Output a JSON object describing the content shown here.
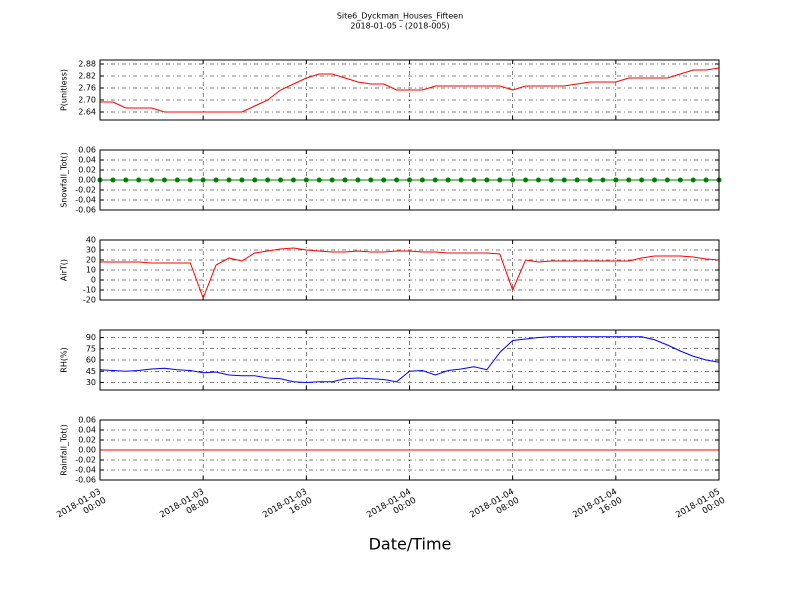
{
  "chart_data": [
    {
      "type": "line",
      "title": "Site6_Dyckman_Houses_Fifteen",
      "subtitle": "2018-01-05 - (2018-005)",
      "ylabel": "P(unitless)",
      "color": "#ff0000",
      "x": [
        "2018-01-03 00:00",
        "2018-01-03 01:00",
        "2018-01-03 02:00",
        "2018-01-03 03:00",
        "2018-01-03 04:00",
        "2018-01-03 05:00",
        "2018-01-03 06:00",
        "2018-01-03 07:00",
        "2018-01-03 08:00",
        "2018-01-03 09:00",
        "2018-01-03 10:00",
        "2018-01-03 11:00",
        "2018-01-03 12:00",
        "2018-01-03 13:00",
        "2018-01-03 14:00",
        "2018-01-03 15:00",
        "2018-01-03 16:00",
        "2018-01-03 17:00",
        "2018-01-03 18:00",
        "2018-01-03 19:00",
        "2018-01-03 20:00",
        "2018-01-03 21:00",
        "2018-01-03 22:00",
        "2018-01-03 23:00",
        "2018-01-04 00:00",
        "2018-01-04 01:00",
        "2018-01-04 02:00",
        "2018-01-04 03:00",
        "2018-01-04 04:00",
        "2018-01-04 05:00",
        "2018-01-04 06:00",
        "2018-01-04 07:00",
        "2018-01-04 08:00",
        "2018-01-04 09:00",
        "2018-01-04 10:00",
        "2018-01-04 11:00",
        "2018-01-04 12:00",
        "2018-01-04 13:00",
        "2018-01-04 14:00",
        "2018-01-04 15:00",
        "2018-01-04 16:00",
        "2018-01-04 17:00",
        "2018-01-04 18:00",
        "2018-01-04 19:00",
        "2018-01-04 20:00",
        "2018-01-04 21:00",
        "2018-01-04 22:00",
        "2018-01-04 23:00",
        "2018-01-05 00:00"
      ],
      "values": [
        2.69,
        2.69,
        2.66,
        2.66,
        2.66,
        2.64,
        2.64,
        2.64,
        2.64,
        2.64,
        2.64,
        2.64,
        2.67,
        2.7,
        2.75,
        2.78,
        2.81,
        2.83,
        2.83,
        2.81,
        2.79,
        2.78,
        2.78,
        2.75,
        2.75,
        2.75,
        2.77,
        2.77,
        2.77,
        2.77,
        2.77,
        2.77,
        2.75,
        2.77,
        2.77,
        2.77,
        2.77,
        2.78,
        2.79,
        2.79,
        2.79,
        2.81,
        2.81,
        2.81,
        2.81,
        2.83,
        2.85,
        2.85,
        2.86
      ],
      "ylim": [
        2.6,
        2.9
      ],
      "yticks": [
        2.64,
        {
          "value": 2.7,
          "label": "2.70"
        },
        2.76,
        2.82,
        2.88
      ],
      "grid": true
    },
    {
      "type": "line",
      "ylabel": "Snowfall_Tot()",
      "color": "#008000",
      "marker": "o",
      "x": [
        "2018-01-03 00:00",
        "2018-01-03 01:00",
        "2018-01-03 02:00",
        "2018-01-03 03:00",
        "2018-01-03 04:00",
        "2018-01-03 05:00",
        "2018-01-03 06:00",
        "2018-01-03 07:00",
        "2018-01-03 08:00",
        "2018-01-03 09:00",
        "2018-01-03 10:00",
        "2018-01-03 11:00",
        "2018-01-03 12:00",
        "2018-01-03 13:00",
        "2018-01-03 14:00",
        "2018-01-03 15:00",
        "2018-01-03 16:00",
        "2018-01-03 17:00",
        "2018-01-03 18:00",
        "2018-01-03 19:00",
        "2018-01-03 20:00",
        "2018-01-03 21:00",
        "2018-01-03 22:00",
        "2018-01-03 23:00",
        "2018-01-04 00:00",
        "2018-01-04 01:00",
        "2018-01-04 02:00",
        "2018-01-04 03:00",
        "2018-01-04 04:00",
        "2018-01-04 05:00",
        "2018-01-04 06:00",
        "2018-01-04 07:00",
        "2018-01-04 08:00",
        "2018-01-04 09:00",
        "2018-01-04 10:00",
        "2018-01-04 11:00",
        "2018-01-04 12:00",
        "2018-01-04 13:00",
        "2018-01-04 14:00",
        "2018-01-04 15:00",
        "2018-01-04 16:00",
        "2018-01-04 17:00",
        "2018-01-04 18:00",
        "2018-01-04 19:00",
        "2018-01-04 20:00",
        "2018-01-04 21:00",
        "2018-01-04 22:00",
        "2018-01-04 23:00",
        "2018-01-05 00:00"
      ],
      "values": [
        0,
        0,
        0,
        0,
        0,
        0,
        0,
        0,
        0,
        0,
        0,
        0,
        0,
        0,
        0,
        0,
        0,
        0,
        0,
        0,
        0,
        0,
        0,
        0,
        0,
        0,
        0,
        0,
        0,
        0,
        0,
        0,
        0,
        0,
        0,
        0,
        0,
        0,
        0,
        0,
        0,
        0,
        0,
        0,
        0,
        0,
        0,
        0,
        0
      ],
      "ylim": [
        -0.06,
        0.06
      ],
      "yticks": [
        -0.06,
        -0.04,
        -0.02,
        {
          "value": 0,
          "label": "0.00"
        },
        0.02,
        0.04,
        0.06
      ],
      "grid": true
    },
    {
      "type": "line",
      "ylabel": "AirT()",
      "color": "#ff0000",
      "x": [
        "2018-01-03 00:00",
        "2018-01-03 01:00",
        "2018-01-03 02:00",
        "2018-01-03 03:00",
        "2018-01-03 04:00",
        "2018-01-03 05:00",
        "2018-01-03 06:00",
        "2018-01-03 07:00",
        "2018-01-03 08:00",
        "2018-01-03 09:00",
        "2018-01-03 10:00",
        "2018-01-03 11:00",
        "2018-01-03 12:00",
        "2018-01-03 13:00",
        "2018-01-03 14:00",
        "2018-01-03 15:00",
        "2018-01-03 16:00",
        "2018-01-03 17:00",
        "2018-01-03 18:00",
        "2018-01-03 19:00",
        "2018-01-03 20:00",
        "2018-01-03 21:00",
        "2018-01-03 22:00",
        "2018-01-03 23:00",
        "2018-01-04 00:00",
        "2018-01-04 01:00",
        "2018-01-04 02:00",
        "2018-01-04 03:00",
        "2018-01-04 04:00",
        "2018-01-04 05:00",
        "2018-01-04 06:00",
        "2018-01-04 07:00",
        "2018-01-04 08:00",
        "2018-01-04 09:00",
        "2018-01-04 10:00",
        "2018-01-04 11:00",
        "2018-01-04 12:00",
        "2018-01-04 13:00",
        "2018-01-04 14:00",
        "2018-01-04 15:00",
        "2018-01-04 16:00",
        "2018-01-04 17:00",
        "2018-01-04 18:00",
        "2018-01-04 19:00",
        "2018-01-04 20:00",
        "2018-01-04 21:00",
        "2018-01-04 22:00",
        "2018-01-04 23:00",
        "2018-01-05 00:00"
      ],
      "values": [
        18,
        18,
        18,
        18,
        17,
        17,
        17,
        17,
        -18,
        15,
        22,
        19,
        27,
        29,
        31,
        32,
        30,
        29,
        28,
        28,
        29,
        28,
        28,
        29,
        29,
        28,
        28,
        27,
        27,
        27,
        27,
        26,
        -10,
        20,
        18,
        19,
        19,
        19,
        19,
        19,
        19,
        19,
        22,
        24,
        24,
        24,
        23,
        21,
        20
      ],
      "ylim": [
        -20,
        40
      ],
      "yticks": [
        -20,
        -10,
        0,
        10,
        20,
        30,
        40
      ],
      "grid": true
    },
    {
      "type": "line",
      "ylabel": "RH(%)",
      "color": "#0000ff",
      "x": [
        "2018-01-03 00:00",
        "2018-01-03 01:00",
        "2018-01-03 02:00",
        "2018-01-03 03:00",
        "2018-01-03 04:00",
        "2018-01-03 05:00",
        "2018-01-03 06:00",
        "2018-01-03 07:00",
        "2018-01-03 08:00",
        "2018-01-03 09:00",
        "2018-01-03 10:00",
        "2018-01-03 11:00",
        "2018-01-03 12:00",
        "2018-01-03 13:00",
        "2018-01-03 14:00",
        "2018-01-03 15:00",
        "2018-01-03 16:00",
        "2018-01-03 17:00",
        "2018-01-03 18:00",
        "2018-01-03 19:00",
        "2018-01-03 20:00",
        "2018-01-03 21:00",
        "2018-01-03 22:00",
        "2018-01-03 23:00",
        "2018-01-04 00:00",
        "2018-01-04 01:00",
        "2018-01-04 02:00",
        "2018-01-04 03:00",
        "2018-01-04 04:00",
        "2018-01-04 05:00",
        "2018-01-04 06:00",
        "2018-01-04 07:00",
        "2018-01-04 08:00",
        "2018-01-04 09:00",
        "2018-01-04 10:00",
        "2018-01-04 11:00",
        "2018-01-04 12:00",
        "2018-01-04 13:00",
        "2018-01-04 14:00",
        "2018-01-04 15:00",
        "2018-01-04 16:00",
        "2018-01-04 17:00",
        "2018-01-04 18:00",
        "2018-01-04 19:00",
        "2018-01-04 20:00",
        "2018-01-04 21:00",
        "2018-01-04 22:00",
        "2018-01-04 23:00",
        "2018-01-05 00:00"
      ],
      "values": [
        47,
        46,
        45,
        46,
        48,
        49,
        47,
        46,
        43,
        44,
        40,
        39,
        39,
        36,
        35,
        31,
        30,
        31,
        31,
        35,
        36,
        35,
        34,
        31,
        45,
        46,
        40,
        46,
        48,
        51,
        47,
        70,
        86,
        88,
        90,
        91,
        91,
        91,
        91,
        91,
        91,
        91,
        91,
        87,
        80,
        72,
        65,
        60,
        57
      ],
      "ylim": [
        20,
        100
      ],
      "yticks": [
        30,
        45,
        60,
        75,
        90
      ],
      "grid": true
    },
    {
      "type": "line",
      "ylabel": "Rainfall_Tot()",
      "color": "#ff0000",
      "xlabel": "Date/Time",
      "x": [
        "2018-01-03 00:00",
        "2018-01-03 01:00",
        "2018-01-03 02:00",
        "2018-01-03 03:00",
        "2018-01-03 04:00",
        "2018-01-03 05:00",
        "2018-01-03 06:00",
        "2018-01-03 07:00",
        "2018-01-03 08:00",
        "2018-01-03 09:00",
        "2018-01-03 10:00",
        "2018-01-03 11:00",
        "2018-01-03 12:00",
        "2018-01-03 13:00",
        "2018-01-03 14:00",
        "2018-01-03 15:00",
        "2018-01-03 16:00",
        "2018-01-03 17:00",
        "2018-01-03 18:00",
        "2018-01-03 19:00",
        "2018-01-03 20:00",
        "2018-01-03 21:00",
        "2018-01-03 22:00",
        "2018-01-03 23:00",
        "2018-01-04 00:00",
        "2018-01-04 01:00",
        "2018-01-04 02:00",
        "2018-01-04 03:00",
        "2018-01-04 04:00",
        "2018-01-04 05:00",
        "2018-01-04 06:00",
        "2018-01-04 07:00",
        "2018-01-04 08:00",
        "2018-01-04 09:00",
        "2018-01-04 10:00",
        "2018-01-04 11:00",
        "2018-01-04 12:00",
        "2018-01-04 13:00",
        "2018-01-04 14:00",
        "2018-01-04 15:00",
        "2018-01-04 16:00",
        "2018-01-04 17:00",
        "2018-01-04 18:00",
        "2018-01-04 19:00",
        "2018-01-04 20:00",
        "2018-01-04 21:00",
        "2018-01-04 22:00",
        "2018-01-04 23:00",
        "2018-01-05 00:00"
      ],
      "values": [
        0,
        0,
        0,
        0,
        0,
        0,
        0,
        0,
        0,
        0,
        0,
        0,
        0,
        0,
        0,
        0,
        0,
        0,
        0,
        0,
        0,
        0,
        0,
        0,
        0,
        0,
        0,
        0,
        0,
        0,
        0,
        0,
        0,
        0,
        0,
        0,
        0,
        0,
        0,
        0,
        0,
        0,
        0,
        0,
        0,
        0,
        0,
        0,
        0
      ],
      "ylim": [
        -0.06,
        0.06
      ],
      "yticks": [
        -0.06,
        -0.04,
        -0.02,
        {
          "value": 0,
          "label": "0.00"
        },
        0.02,
        0.04,
        0.06
      ],
      "grid": true,
      "xlim": [
        "2018-01-03 00:00",
        "2018-01-05 00:00"
      ],
      "xticks": [
        "2018-01-03 00:00",
        "2018-01-03 08:00",
        "2018-01-03 16:00",
        "2018-01-04 00:00",
        "2018-01-04 08:00",
        "2018-01-04 16:00",
        "2018-01-05 00:00"
      ]
    }
  ]
}
